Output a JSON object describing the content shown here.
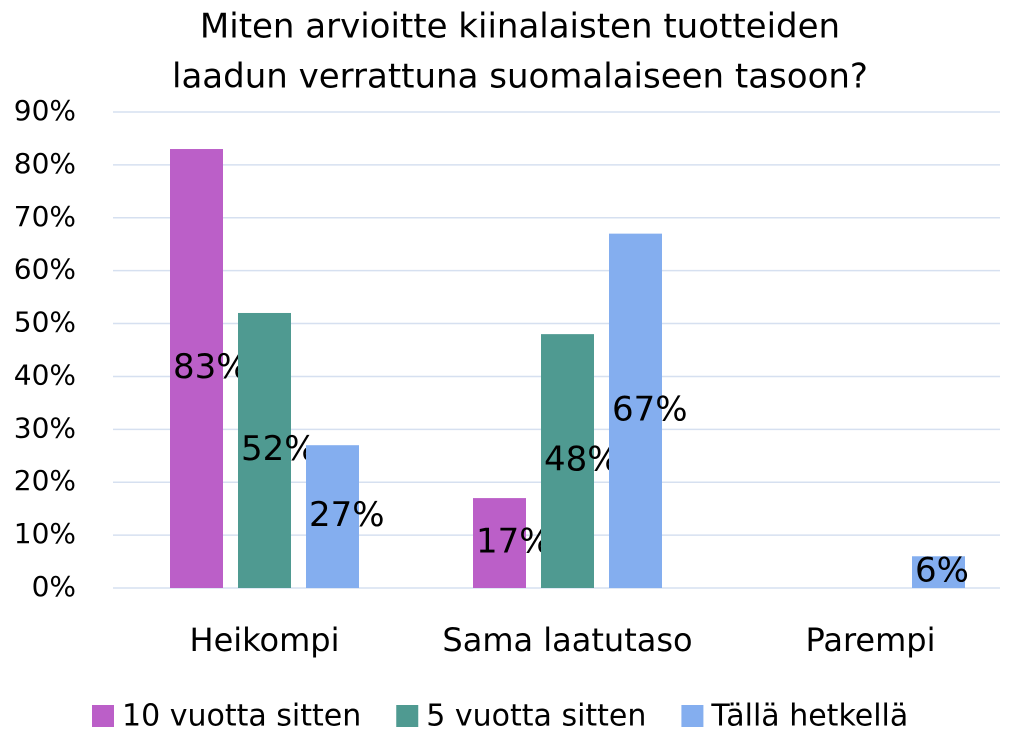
{
  "chart_data": {
    "type": "bar",
    "title": [
      "Miten arvioitte kiinalaisten tuotteiden",
      "laadun verrattuna suomalaiseen tasoon?"
    ],
    "categories": [
      "Heikompi",
      "Sama laatutaso",
      "Parempi"
    ],
    "series": [
      {
        "name": "10 vuotta sitten",
        "color": "#bb5fc8",
        "values": [
          83,
          17,
          null
        ],
        "value_labels": [
          "83%",
          "17%",
          null
        ]
      },
      {
        "name": "5 vuotta sitten",
        "color": "#4f9a91",
        "values": [
          52,
          48,
          null
        ],
        "value_labels": [
          "52%",
          "48%",
          null
        ]
      },
      {
        "name": "Tällä hetkellä",
        "color": "#84aeef",
        "values": [
          27,
          67,
          6
        ],
        "value_labels": [
          "27%",
          "67%",
          "6%"
        ]
      }
    ],
    "ylim": [
      0,
      90
    ],
    "yticks": [
      {
        "value": 0,
        "label": "0%"
      },
      {
        "value": 10,
        "label": "10%"
      },
      {
        "value": 20,
        "label": "20%"
      },
      {
        "value": 30,
        "label": "30%"
      },
      {
        "value": 40,
        "label": "40%"
      },
      {
        "value": 50,
        "label": "50%"
      },
      {
        "value": 60,
        "label": "60%"
      },
      {
        "value": 70,
        "label": "70%"
      },
      {
        "value": 80,
        "label": "80%"
      },
      {
        "value": 90,
        "label": "90%"
      }
    ],
    "grid": true,
    "legend": "bottom"
  }
}
